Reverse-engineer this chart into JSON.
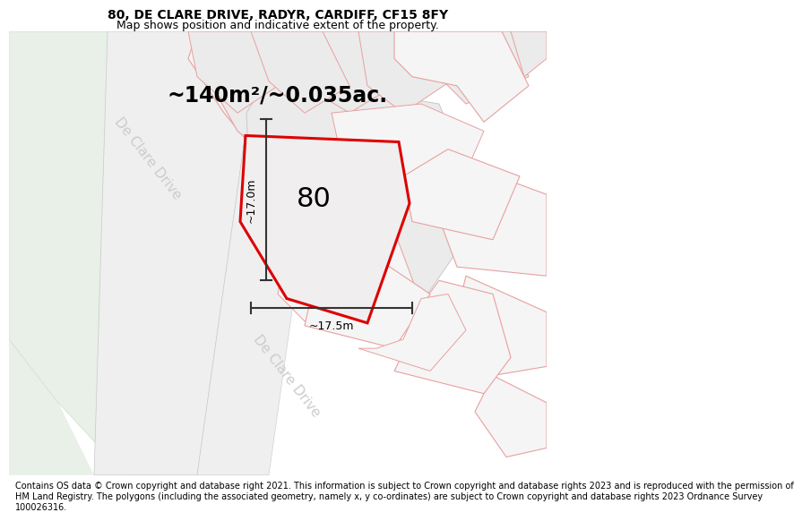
{
  "title_line1": "80, DE CLARE DRIVE, RADYR, CARDIFF, CF15 8FY",
  "title_line2": "Map shows position and indicative extent of the property.",
  "footer_lines": [
    "Contains OS data © Crown copyright and database right 2021. This information is subject to Crown copyright and database rights 2023 and is reproduced with the permission of",
    "HM Land Registry. The polygons (including the associated geometry, namely x, y co-ordinates) are subject to Crown copyright and database rights 2023 Ordnance Survey",
    "100026316."
  ],
  "area_label": "~140m²/~0.035ac.",
  "number_label": "80",
  "dim_vertical": "~17.0m",
  "dim_horizontal": "~17.5m",
  "road_label1": "De Clare Drive",
  "road_label2": "De Clare Drive",
  "red_color": "#dd0000",
  "light_pink_edge": "#e8a0a0",
  "gray_edge": "#c8c8c8",
  "map_bg": "#f8f8f8",
  "block_fill_light": "#ebebeb",
  "block_fill_white": "#f5f5f5",
  "green_fill": "#e8f0e8",
  "road_fill": "#f0efef",
  "dim_color": "#333333",
  "road_text_color": "#cccccc",
  "title_fontsize": 10,
  "subtitle_fontsize": 9,
  "footer_fontsize": 7,
  "area_fontsize": 17,
  "number_fontsize": 22,
  "dim_fontsize": 9,
  "road_fontsize": 11
}
